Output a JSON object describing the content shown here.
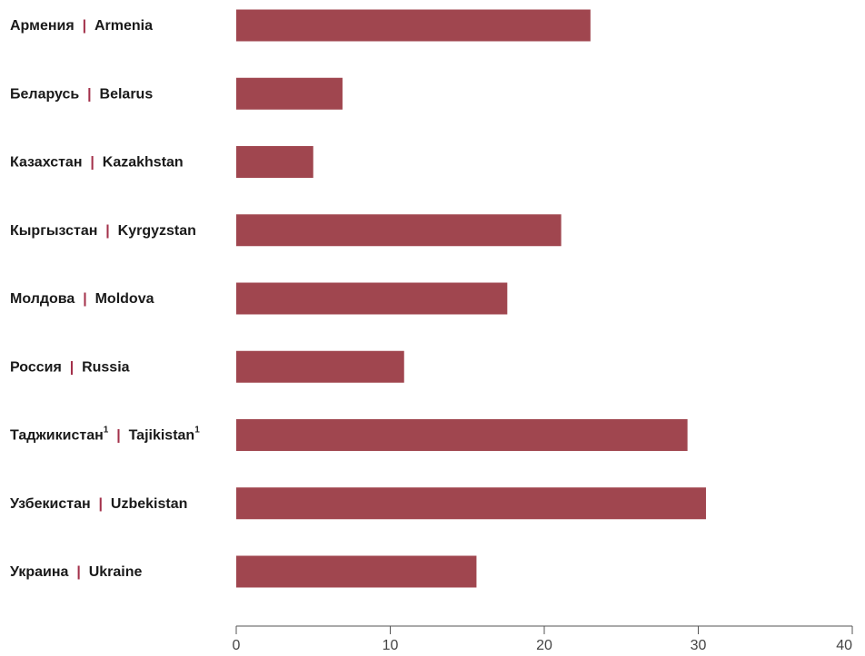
{
  "colors": {
    "bar": "#a0464f",
    "separator": "#a3304a",
    "axis": "#555555"
  },
  "chart_data": {
    "type": "bar",
    "orientation": "horizontal",
    "categories": [
      {
        "ru": "Армения",
        "en": "Armenia",
        "sup": ""
      },
      {
        "ru": "Беларусь",
        "en": "Belarus",
        "sup": ""
      },
      {
        "ru": "Казахстан",
        "en": "Kazakhstan",
        "sup": ""
      },
      {
        "ru": "Кыргызстан",
        "en": "Kyrgyzstan",
        "sup": ""
      },
      {
        "ru": "Молдова",
        "en": "Moldova",
        "sup": ""
      },
      {
        "ru": "Россия",
        "en": "Russia",
        "sup": ""
      },
      {
        "ru": "Таджикистан",
        "en": "Tajikistan",
        "sup": "1"
      },
      {
        "ru": "Узбекистан",
        "en": "Uzbekistan",
        "sup": ""
      },
      {
        "ru": "Украина",
        "en": "Ukraine",
        "sup": ""
      }
    ],
    "separator": "|",
    "values": [
      23.0,
      6.9,
      5.0,
      21.1,
      17.6,
      10.9,
      29.3,
      30.5,
      15.6
    ],
    "xlim": [
      0,
      40
    ],
    "xticks": [
      0,
      10,
      20,
      30,
      40
    ],
    "title": "",
    "xlabel": "",
    "ylabel": "",
    "grid": false,
    "legend": "none"
  }
}
